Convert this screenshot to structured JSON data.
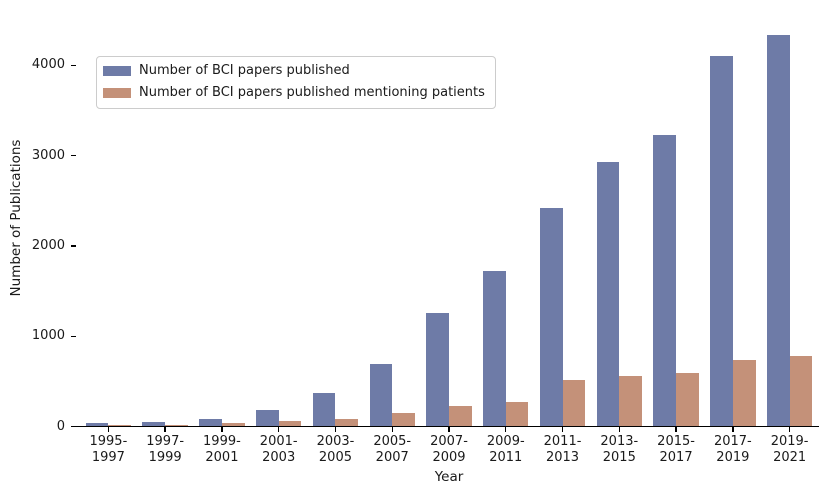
{
  "figure": {
    "background": "#ffffff",
    "axis_color": "#000000",
    "text_color": "#1a1a1a",
    "legend_border_color": "#cccccc"
  },
  "chart_data": {
    "type": "bar",
    "title": "",
    "xlabel": "Year",
    "ylabel": "Number of Publications",
    "categories": [
      "1995-1997",
      "1997-1999",
      "1999-2001",
      "2001-2003",
      "2003-2005",
      "2005-2007",
      "2007-2009",
      "2009-2011",
      "2011-2013",
      "2013-2015",
      "2015-2017",
      "2017-2019",
      "2019-2021"
    ],
    "series": [
      {
        "name": "Number of BCI papers published",
        "color": "#6e7ba7",
        "values": [
          40,
          55,
          80,
          185,
          370,
          690,
          1260,
          1720,
          2420,
          2930,
          3230,
          4100,
          4340
        ]
      },
      {
        "name": "Number of BCI papers published mentioning patients",
        "color": "#c49179",
        "values": [
          20,
          20,
          35,
          60,
          80,
          145,
          225,
          275,
          520,
          560,
          595,
          735,
          785
        ]
      }
    ],
    "yticks": [
      0,
      1000,
      2000,
      3000,
      4000
    ],
    "ylim": [
      0,
      4613
    ],
    "grid": false,
    "legend_position": "upper left"
  }
}
